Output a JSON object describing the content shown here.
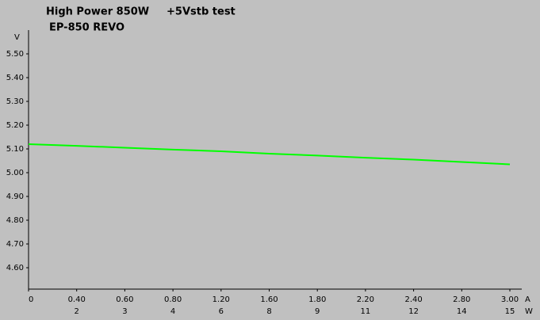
{
  "chart_data": {
    "type": "line",
    "title": "High Power 850W",
    "subtitle": "+5Vstb test",
    "annotation": "EP-850 REVO",
    "y_label": "V",
    "x_label": "A",
    "x2_label": "W",
    "categories": [
      "0",
      "0.40",
      "0.60",
      "0.80",
      "1.20",
      "1.60",
      "1.80",
      "2.20",
      "2.40",
      "2.80",
      "3.00"
    ],
    "x2_categories": [
      null,
      "2",
      "3",
      "4",
      "6",
      "8",
      "9",
      "11",
      "12",
      "14",
      "15"
    ],
    "series": [
      {
        "color": "#00ff00",
        "values": [
          5.12,
          5.113,
          5.105,
          5.097,
          5.09,
          5.08,
          5.072,
          5.063,
          5.055,
          5.045,
          5.035
        ]
      }
    ],
    "ylim": [
      4.51,
      5.6
    ],
    "yticks": [
      {
        "value": 4.6,
        "label": "4.60"
      },
      {
        "value": 4.7,
        "label": "4.70"
      },
      {
        "value": 4.8,
        "label": "4.80"
      },
      {
        "value": 4.9,
        "label": "4.90"
      },
      {
        "value": 5.0,
        "label": "5.00"
      },
      {
        "value": 5.1,
        "label": "5.10"
      },
      {
        "value": 5.2,
        "label": "5.20"
      },
      {
        "value": 5.3,
        "label": "5.30"
      },
      {
        "value": 5.4,
        "label": "5.40"
      },
      {
        "value": 5.5,
        "label": "5.50"
      }
    ]
  }
}
